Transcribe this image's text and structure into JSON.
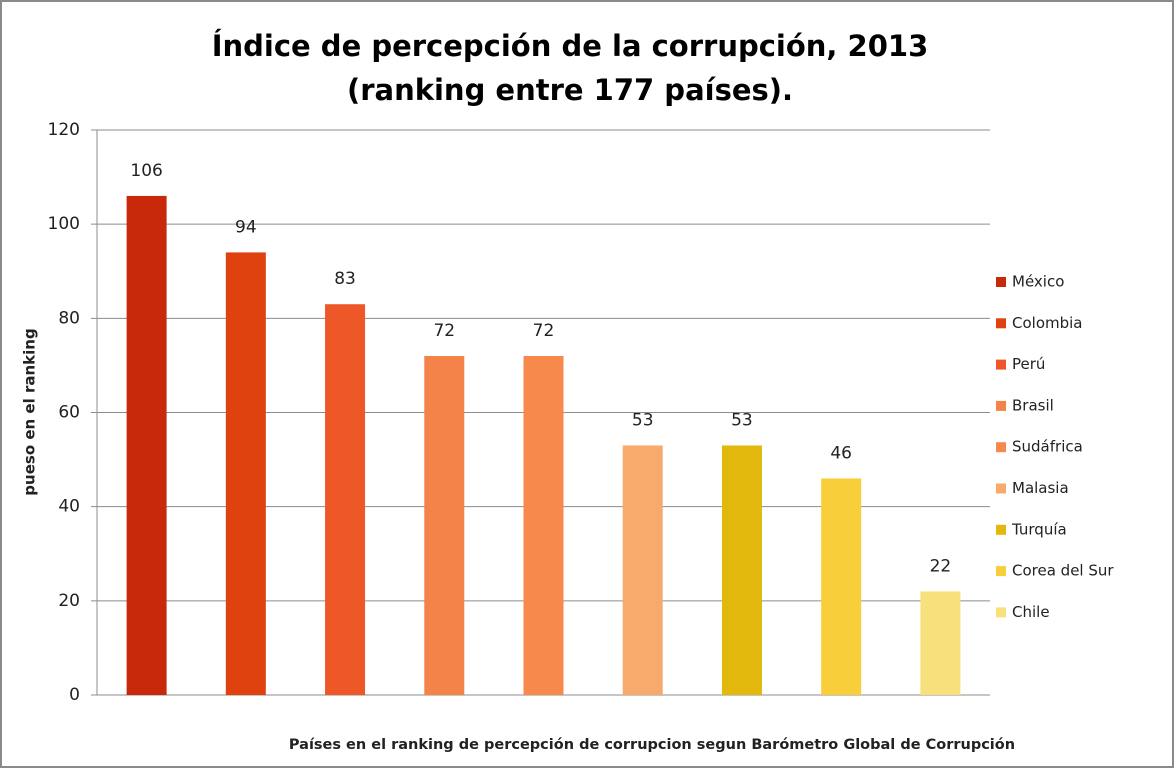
{
  "chart_data": {
    "type": "bar",
    "title": "Índice de percepción de la corrupción, 2013 (ranking entre 177 países).",
    "y_label": "pueso en el ranking",
    "x_label": "Países en el ranking de percepción de corrupcion segun Barómetro Global de Corrupción",
    "categories": [
      "México",
      "Colombia",
      "Perú",
      "Brasil",
      "Sudáfrica",
      "Malasia",
      "Turquía",
      "Corea del Sur",
      "Chile"
    ],
    "values": [
      106,
      94,
      83,
      72,
      72,
      53,
      53,
      46,
      22
    ],
    "colors": [
      "#c8290a",
      "#df410f",
      "#ee5828",
      "#f4834a",
      "#f6894b",
      "#f8aa6c",
      "#e3b80c",
      "#f8cf3a",
      "#f8e17c"
    ],
    "ylim": [
      0,
      120
    ],
    "yticks": [
      0,
      20,
      40,
      60,
      80,
      100,
      120
    ],
    "grid": true,
    "legend": "right"
  }
}
